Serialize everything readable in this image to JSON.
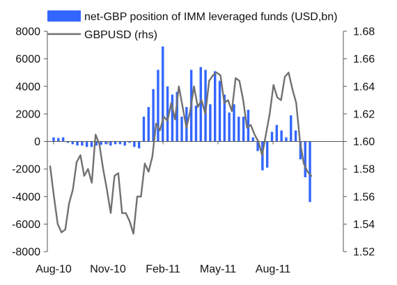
{
  "chart_data": {
    "type": "bar+line",
    "legend": {
      "bars_label": "net-GBP position of IMM leveraged funds (USD,bn)",
      "line_label": "GBPUSD (rhs)",
      "placement": "top"
    },
    "x_tick_labels": [
      "Aug-10",
      "Nov-10",
      "Feb-11",
      "May-11",
      "Aug-11"
    ],
    "y_left": {
      "min": -8000,
      "max": 8000,
      "step": 2000,
      "tick_labels": [
        "-8000",
        "-6000",
        "-4000",
        "-2000",
        "0",
        "2000",
        "4000",
        "6000",
        "8000"
      ]
    },
    "y_right": {
      "min": 1.52,
      "max": 1.68,
      "step": 0.02,
      "tick_labels": [
        "1.52",
        "1.54",
        "1.56",
        "1.58",
        "1.60",
        "1.62",
        "1.64",
        "1.66",
        "1.68"
      ]
    },
    "grid": false,
    "colors": {
      "bars": "#3366ff",
      "line": "#707070",
      "axis": "#555555"
    },
    "series": [
      {
        "name": "net-GBP position of IMM leveraged funds (USD,bn)",
        "kind": "bar",
        "axis": "left",
        "values": [
          300,
          250,
          300,
          -100,
          -200,
          -300,
          -300,
          -400,
          -400,
          -300,
          -250,
          -200,
          -300,
          -200,
          -200,
          -300,
          -100,
          -400,
          -500,
          1800,
          2500,
          3800,
          5200,
          6900,
          4000,
          3400,
          3600,
          1800,
          2500,
          5200,
          2600,
          5400,
          5200,
          2700,
          5100,
          4400,
          3400,
          2100,
          2700,
          1800,
          1800,
          2300,
          300,
          -700,
          -2100,
          -1900,
          700,
          1200,
          800,
          300,
          1900,
          800,
          -1300,
          -2600,
          -4400
        ]
      },
      {
        "name": "GBPUSD (rhs)",
        "kind": "line",
        "axis": "right",
        "values": [
          1.582,
          1.56,
          1.54,
          1.534,
          1.536,
          1.555,
          1.565,
          1.585,
          1.59,
          1.575,
          1.58,
          1.57,
          1.605,
          1.598,
          1.58,
          1.565,
          1.548,
          1.575,
          1.577,
          1.548,
          1.548,
          1.542,
          1.533,
          1.56,
          1.56,
          1.584,
          1.578,
          1.589,
          1.613,
          1.608,
          1.618,
          1.615,
          1.628,
          1.616,
          1.64,
          1.625,
          1.61,
          1.622,
          1.64,
          1.625,
          1.63,
          1.62,
          1.644,
          1.648,
          1.65,
          1.648,
          1.628,
          1.63,
          1.622,
          1.646,
          1.644,
          1.63,
          1.61,
          1.612,
          1.605,
          1.6,
          1.59,
          1.605,
          1.62,
          1.641,
          1.632,
          1.63,
          1.647,
          1.65,
          1.638,
          1.628,
          1.6,
          1.584,
          1.578,
          1.575
        ]
      }
    ]
  }
}
